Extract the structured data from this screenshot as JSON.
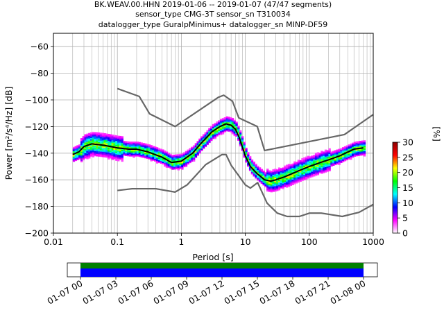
{
  "header": {
    "title_line1": "BK.WEAV.00.HHN   2019-01-06 -- 2019-01-07  (47/47 segments)",
    "title_line2": "sensor_type CMG-3T sensor_sn T310034",
    "title_line3": "datalogger_type GuralpMinimus+ datalogger_sn MINP-DF59"
  },
  "chart_data": {
    "type": "heatmap",
    "title": "BK.WEAV.00.HHN   2019-01-06 -- 2019-01-07  (47/47 segments)",
    "xlabel": "Period [s]",
    "ylabel": "Power [m²/s⁴/Hz] [dB]",
    "xscale": "log",
    "xlim": [
      0.01,
      1000
    ],
    "ylim": [
      -200,
      -50
    ],
    "xtick_labels": [
      "0.01",
      "0.1",
      "1",
      "10",
      "100",
      "1000"
    ],
    "yticks": [
      -60,
      -80,
      -100,
      -120,
      -140,
      -160,
      -180,
      -200
    ],
    "grid": true,
    "colorbar": {
      "label": "[%]",
      "range": [
        0,
        30
      ],
      "ticks": [
        0,
        5,
        10,
        15,
        20,
        25,
        30
      ],
      "colormap": [
        "#ffffff",
        "#ff00ff",
        "#0000ff",
        "#00ffff",
        "#00ff00",
        "#ffff00",
        "#ff0000",
        "#8b0000"
      ]
    },
    "series": [
      {
        "role": "mode",
        "color": "#000000",
        "x": [
          0.02,
          0.025,
          0.03,
          0.04,
          0.06,
          0.1,
          0.15,
          0.2,
          0.3,
          0.5,
          0.7,
          1,
          1.5,
          2,
          3,
          4,
          5,
          6,
          7,
          8,
          10,
          12,
          15,
          20,
          25,
          30,
          40,
          50,
          70,
          100,
          150,
          200,
          300,
          500,
          700
        ],
        "y": [
          -141,
          -139,
          -135,
          -133,
          -134,
          -136,
          -137,
          -137,
          -139,
          -143,
          -147,
          -146,
          -140,
          -133,
          -124,
          -120,
          -118,
          -119,
          -122,
          -128,
          -142,
          -150,
          -155,
          -160,
          -161,
          -160,
          -158,
          -156,
          -153,
          -150,
          -147,
          -145,
          -142,
          -137,
          -136
        ]
      },
      {
        "role": "noise-model-high",
        "color": "#666666",
        "x": [
          0.1,
          0.22,
          0.32,
          0.8,
          3.8,
          4.6,
          6.3,
          7.9,
          15.4,
          20,
          354.8,
          1000
        ],
        "y": [
          -91.5,
          -97.4,
          -110.5,
          -120,
          -98,
          -96.5,
          -101,
          -113.5,
          -120,
          -138,
          -126,
          -111
        ]
      },
      {
        "role": "noise-model-low",
        "color": "#666666",
        "x": [
          0.1,
          0.17,
          0.4,
          0.8,
          1.24,
          2.4,
          4.3,
          5,
          6,
          10,
          12,
          15.6,
          21.9,
          31.6,
          45,
          70,
          101,
          154,
          328,
          600,
          1000
        ],
        "y": [
          -168,
          -166.7,
          -166.7,
          -169.2,
          -163.7,
          -148.6,
          -141.1,
          -141.1,
          -149,
          -163.8,
          -166.2,
          -162.1,
          -177.5,
          -185,
          -187.5,
          -187.5,
          -185,
          -185,
          -187.5,
          -184.4,
          -178.5
        ]
      }
    ]
  },
  "timeline": {
    "tick_labels": [
      "01-07 00",
      "01-07 03",
      "01-07 06",
      "01-07 09",
      "01-07 12",
      "01-07 15",
      "01-07 18",
      "01-07 21",
      "01-08 00"
    ],
    "data_color": "#008000",
    "used_color": "#0000ff"
  }
}
